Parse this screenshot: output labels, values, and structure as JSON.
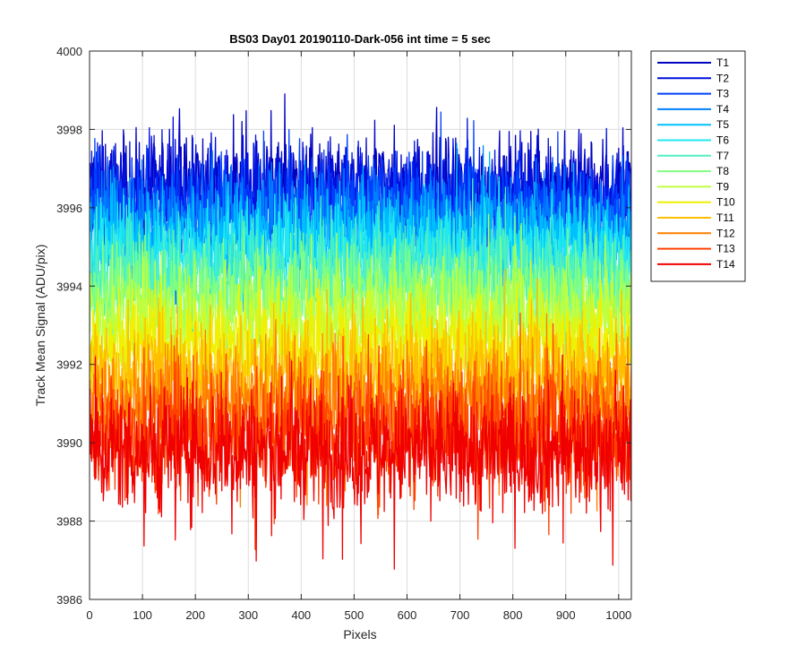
{
  "chart_data": {
    "type": "line",
    "title": "BS03 Day01 20190110-Dark-056 int time = 5 sec",
    "xlabel": "Pixels",
    "ylabel": "Track Mean Signal (ADU/pix)",
    "xlim": [
      0,
      1024
    ],
    "ylim": [
      3986,
      4000
    ],
    "xticks": [
      0,
      100,
      200,
      300,
      400,
      500,
      600,
      700,
      800,
      900,
      1000
    ],
    "yticks": [
      3986,
      3988,
      3990,
      3992,
      3994,
      3996,
      3998,
      4000
    ],
    "grid": true,
    "legend_position": "outside-top-right",
    "n_points": 1024,
    "series": [
      {
        "name": "T1",
        "color": "#0000BF",
        "mean": 3996.5,
        "spread": 0.65
      },
      {
        "name": "T2",
        "color": "#0010E0",
        "mean": 3996.3,
        "spread": 0.65
      },
      {
        "name": "T3",
        "color": "#0040FF",
        "mean": 3996.0,
        "spread": 0.65
      },
      {
        "name": "T4",
        "color": "#0080FF",
        "mean": 3995.6,
        "spread": 0.65
      },
      {
        "name": "T5",
        "color": "#00BFFF",
        "mean": 3995.2,
        "spread": 0.65
      },
      {
        "name": "T6",
        "color": "#20E8F0",
        "mean": 3994.8,
        "spread": 0.65
      },
      {
        "name": "T7",
        "color": "#50F0C0",
        "mean": 3994.3,
        "spread": 0.65
      },
      {
        "name": "T8",
        "color": "#80FF80",
        "mean": 3993.8,
        "spread": 0.65
      },
      {
        "name": "T9",
        "color": "#BFFF40",
        "mean": 3993.2,
        "spread": 0.7
      },
      {
        "name": "T10",
        "color": "#F0F000",
        "mean": 3992.5,
        "spread": 0.7
      },
      {
        "name": "T11",
        "color": "#FFBF00",
        "mean": 3991.8,
        "spread": 0.7
      },
      {
        "name": "T12",
        "color": "#FF8000",
        "mean": 3991.0,
        "spread": 0.75
      },
      {
        "name": "T13",
        "color": "#FF4000",
        "mean": 3990.3,
        "spread": 0.8
      },
      {
        "name": "T14",
        "color": "#F00000",
        "mean": 3989.8,
        "spread": 0.8
      }
    ]
  }
}
